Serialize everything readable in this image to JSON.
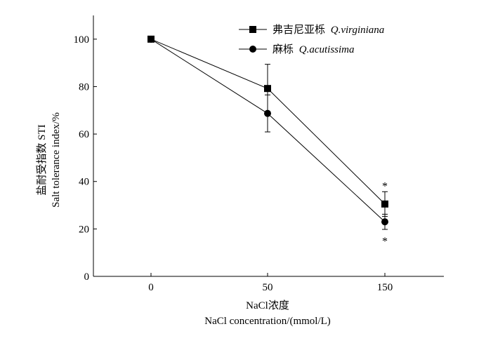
{
  "chart_data": {
    "type": "line",
    "x_categories": [
      "0",
      "50",
      "150"
    ],
    "series": [
      {
        "name": "弗吉尼亚栎",
        "name_latin": "Q.virginiana",
        "marker": "square",
        "values": [
          100,
          79.2,
          30.5
        ],
        "errors": [
          0,
          10.2,
          5.2
        ],
        "annotations": [
          "",
          "",
          "*"
        ]
      },
      {
        "name": "麻栎",
        "name_latin": "Q.acutissima",
        "marker": "circle",
        "values": [
          100,
          68.7,
          23.0
        ],
        "errors": [
          0,
          7.8,
          3.2
        ],
        "annotations": [
          "",
          "",
          "*"
        ]
      }
    ],
    "yticks": [
      "0",
      "20",
      "40",
      "60",
      "80",
      "100"
    ],
    "ylim": [
      0,
      110
    ],
    "ylabel_zh": "盐耐受指数 STI",
    "ylabel_en": "Salt tolerance index/%",
    "xlabel_zh": "NaCl浓度",
    "xlabel_en": "NaCl concentration/(mmol/L)",
    "legend_position": "top-right",
    "grid": false
  }
}
